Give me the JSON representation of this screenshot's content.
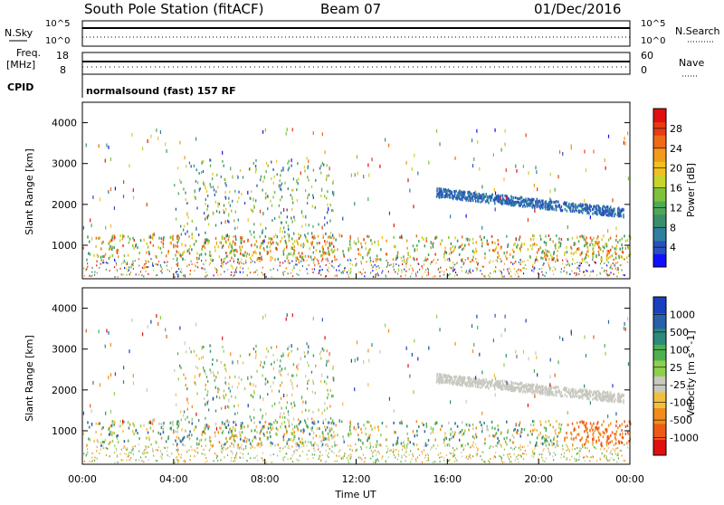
{
  "header": {
    "station": "South Pole Station (fitACF)",
    "beam": "Beam 07",
    "date": "01/Dec/2016"
  },
  "top_panels": {
    "nsky_label": "N.Sky",
    "nsky_ticks": [
      "10^5",
      "10^0"
    ],
    "nsearch_label": "N.Search",
    "nsearch_ticks": [
      "10^5",
      "10^0"
    ],
    "freq_label": "Freq.",
    "freq_unit": "[MHz]",
    "freq_ticks": [
      "18",
      "8"
    ],
    "nave_label": "Nave",
    "nave_ticks": [
      "60",
      "0"
    ],
    "cpid_label": "CPID",
    "cpid_text": "normalsound (fast) 157 RF"
  },
  "chart_data": [
    {
      "type": "heatmap",
      "name": "power",
      "ylabel": "Slant Range [km]",
      "ylim": [
        180,
        4500
      ],
      "yticks": [
        "1000",
        "2000",
        "3000",
        "4000"
      ],
      "ytick_values": [
        1000,
        2000,
        3000,
        4000
      ],
      "xlim": [
        0,
        24
      ],
      "colorbar": {
        "label": "Power [dB]",
        "ticks": [
          "4",
          "8",
          "12",
          "16",
          "20",
          "24",
          "28"
        ],
        "range": [
          0,
          30
        ],
        "colors": [
          "#1010ff",
          "#2a4fbf",
          "#2e7fa0",
          "#3a8f6a",
          "#4fa85a",
          "#7ec23c",
          "#c8d42a",
          "#f0c020",
          "#f29a1a",
          "#ef6a16",
          "#e83a14",
          "#e01010"
        ]
      },
      "features": [
        {
          "desc": "ground scatter 600-1200 km",
          "t": [
            0,
            24
          ],
          "r": [
            600,
            1200
          ],
          "value": 16
        },
        {
          "desc": "band near 2000 km",
          "t": [
            15.5,
            23.5
          ],
          "r": [
            1600,
            2300
          ],
          "value": 6
        },
        {
          "desc": "echoes near 3000 km",
          "t": [
            8.5,
            9.5
          ],
          "r": [
            2700,
            3100
          ],
          "value": 8
        }
      ]
    },
    {
      "type": "heatmap",
      "name": "velocity",
      "ylabel": "Slant Range [km]",
      "ylim": [
        180,
        4500
      ],
      "yticks": [
        "1000",
        "2000",
        "3000",
        "4000"
      ],
      "ytick_values": [
        1000,
        2000,
        3000,
        4000
      ],
      "xlim": [
        0,
        24
      ],
      "xticks": [
        "00:00",
        "04:00",
        "08:00",
        "12:00",
        "16:00",
        "20:00",
        "00:00"
      ],
      "xtick_values": [
        0,
        4,
        8,
        12,
        16,
        20,
        24
      ],
      "xlabel": "Time UT",
      "colorbar": {
        "label": "Velocity [m s^-1]",
        "ticks": [
          "1000",
          "500",
          "100",
          "25",
          "-25",
          "-100",
          "-500",
          "-1000"
        ],
        "colors": [
          "#1a3fbf",
          "#2a60a8",
          "#2e8a7a",
          "#4fb050",
          "#8fcf50",
          "#c8c8c0",
          "#f2c040",
          "#f28c1a",
          "#ee5a16",
          "#e01010"
        ]
      }
    }
  ]
}
